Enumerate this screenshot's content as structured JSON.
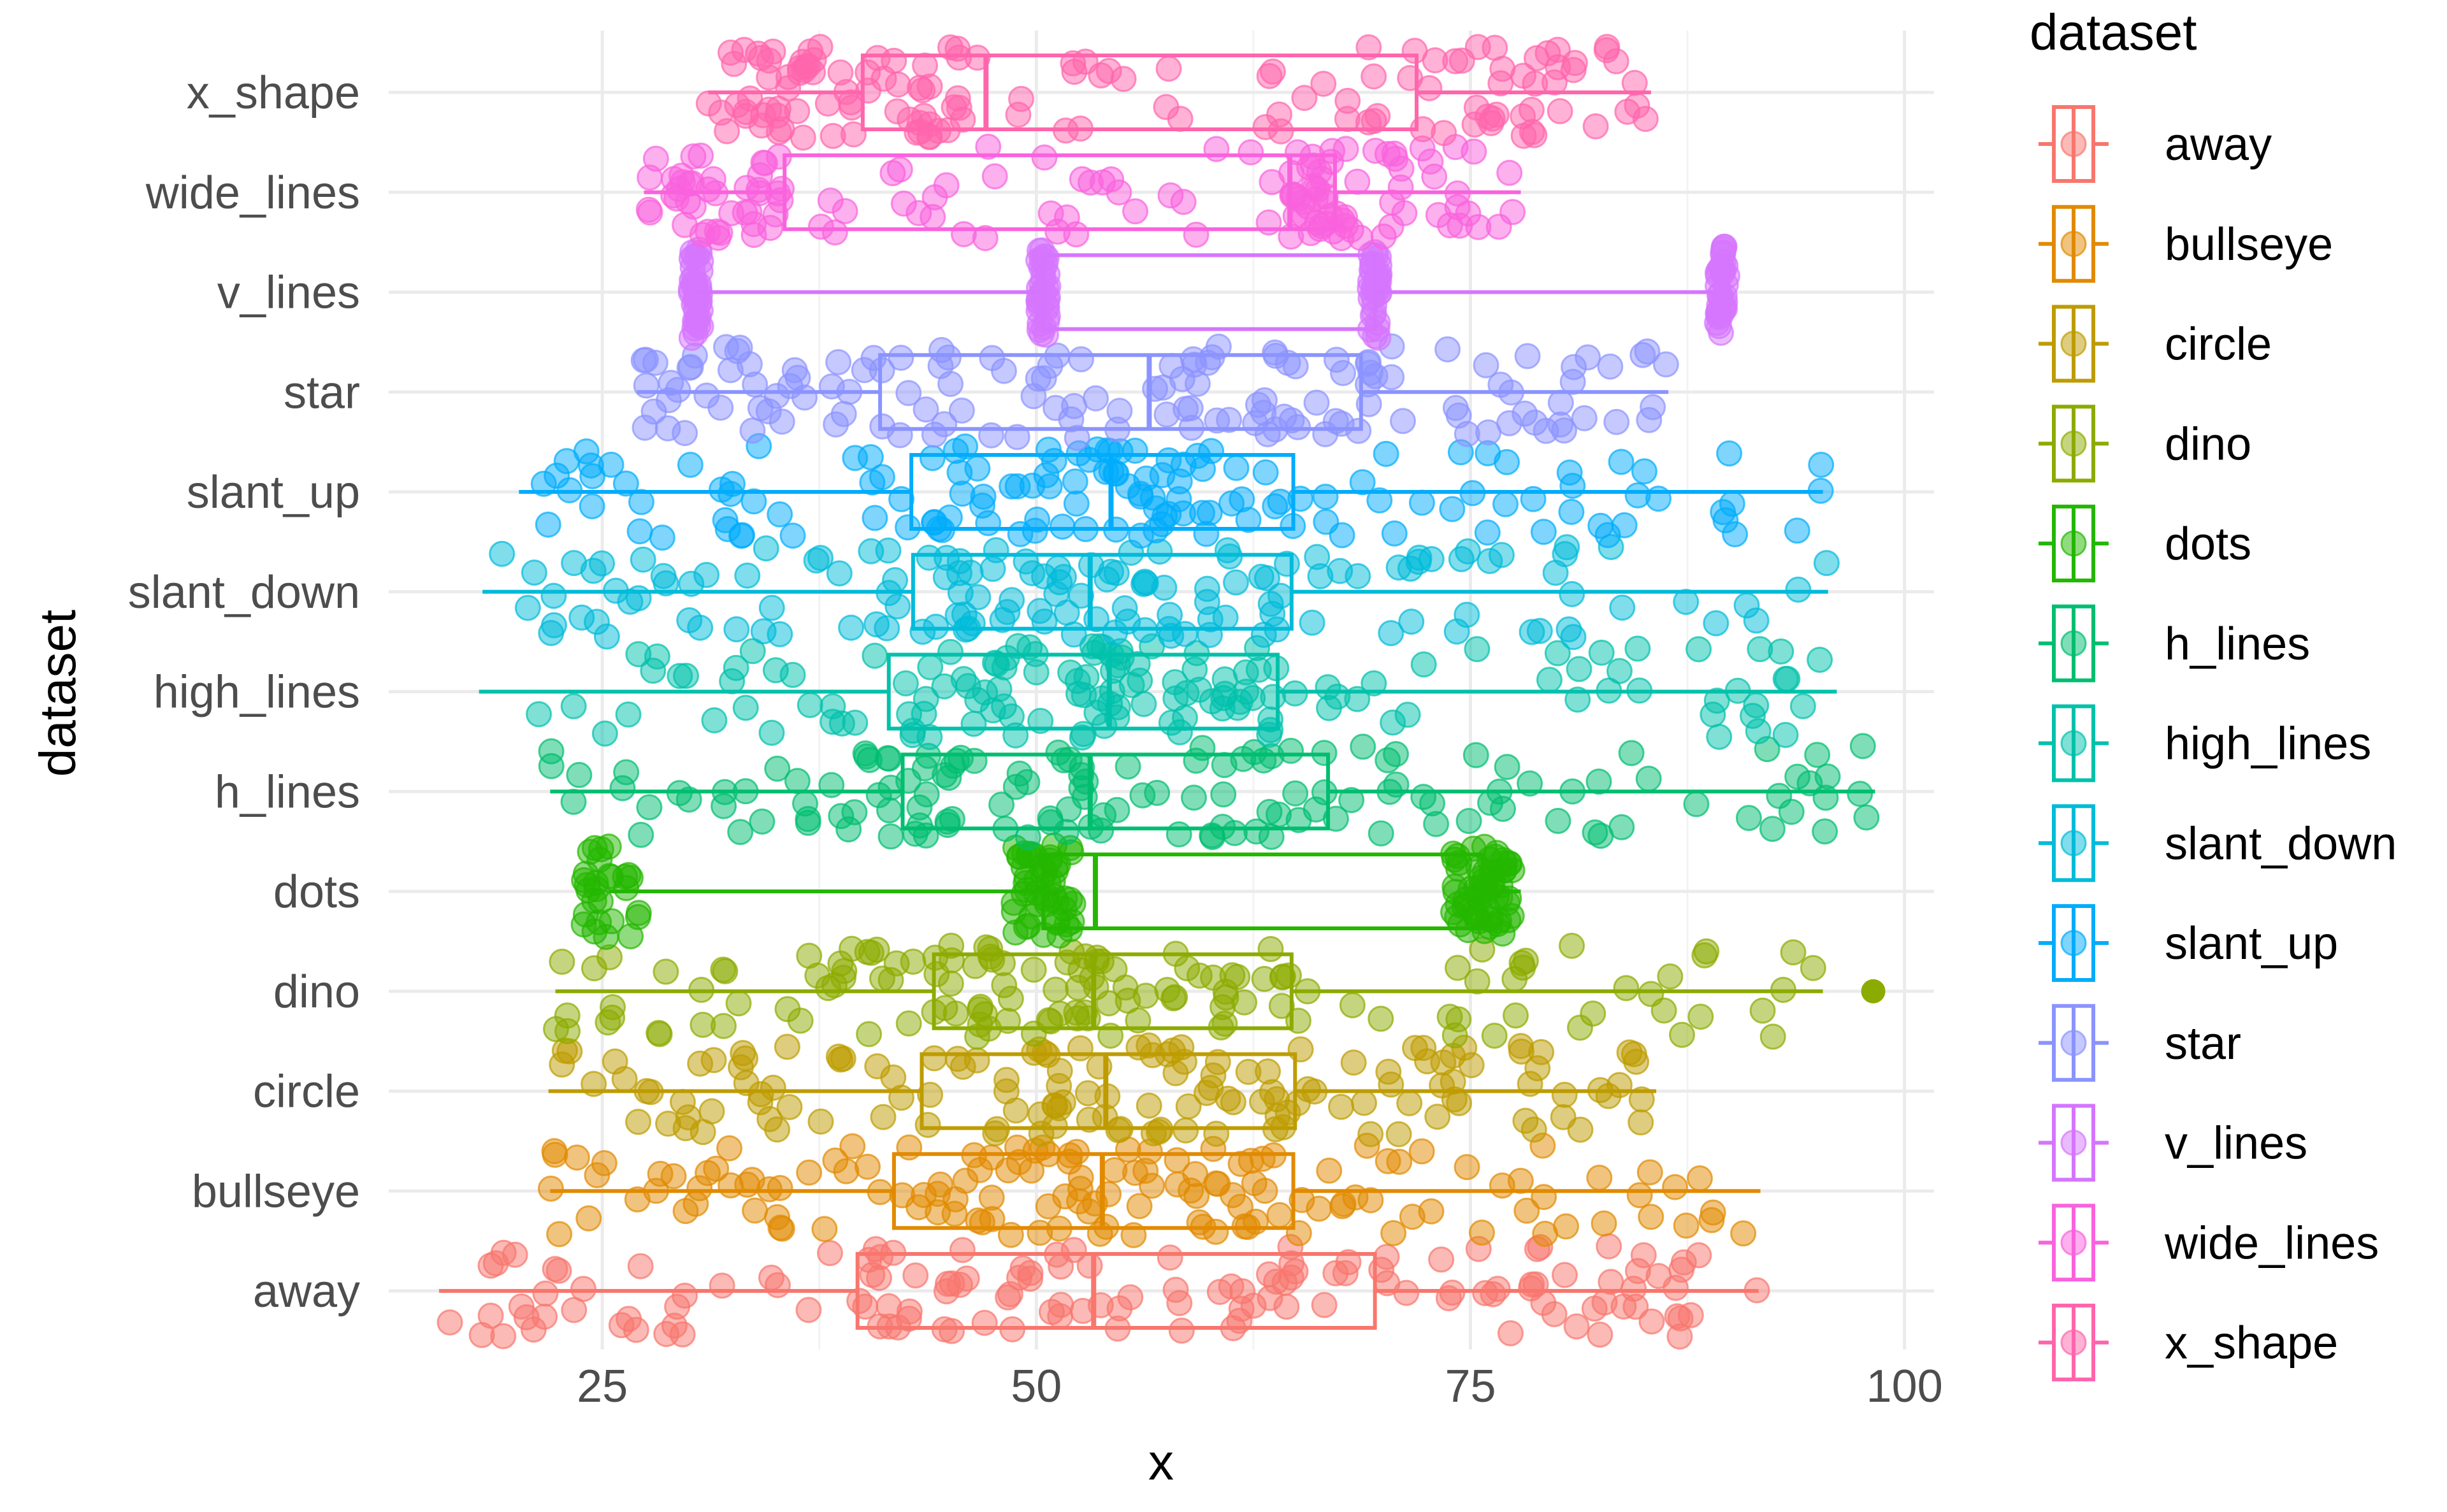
{
  "chart_data": {
    "type": "boxplot_jitter",
    "orientation": "horizontal",
    "xlabel": "x",
    "ylabel": "dataset",
    "xlim": [
      12.7,
      101.7
    ],
    "xticks": [
      25,
      50,
      75,
      100
    ],
    "grid": true,
    "legend": {
      "title": "dataset",
      "position": "right",
      "entries": [
        "away",
        "bullseye",
        "circle",
        "dino",
        "dots",
        "h_lines",
        "high_lines",
        "slant_down",
        "slant_up",
        "star",
        "v_lines",
        "wide_lines",
        "x_shape"
      ]
    },
    "categories": [
      "away",
      "bullseye",
      "circle",
      "dino",
      "dots",
      "h_lines",
      "high_lines",
      "slant_down",
      "slant_up",
      "star",
      "v_lines",
      "wide_lines",
      "x_shape"
    ],
    "colors": {
      "away": "#F8766D",
      "bullseye": "#E18A00",
      "circle": "#BE9C00",
      "dino": "#8CAB00",
      "dots": "#24B700",
      "h_lines": "#00BE70",
      "high_lines": "#00C1AB",
      "slant_down": "#00BBDA",
      "slant_up": "#00ACFC",
      "star": "#8B93FF",
      "v_lines": "#D575FE",
      "wide_lines": "#F962DD",
      "x_shape": "#FF65AC"
    },
    "series": [
      {
        "name": "away",
        "whisker_low": 15.6,
        "q1": 39.7,
        "median": 53.3,
        "q3": 69.5,
        "whisker_high": 91.6,
        "outliers": []
      },
      {
        "name": "bullseye",
        "whisker_low": 22.0,
        "q1": 41.8,
        "median": 53.8,
        "q3": 64.8,
        "whisker_high": 91.7,
        "outliers": []
      },
      {
        "name": "circle",
        "whisker_low": 21.9,
        "q1": 43.4,
        "median": 54.0,
        "q3": 64.9,
        "whisker_high": 85.7,
        "outliers": []
      },
      {
        "name": "dino",
        "whisker_low": 22.3,
        "q1": 44.1,
        "median": 53.3,
        "q3": 64.7,
        "whisker_high": 95.3,
        "outliers": [
          98.2
        ]
      },
      {
        "name": "dots",
        "whisker_low": 25.4,
        "q1": 50.4,
        "median": 53.4,
        "q3": 75.7,
        "whisker_high": 77.9,
        "outliers": []
      },
      {
        "name": "h_lines",
        "whisker_low": 22.0,
        "q1": 42.3,
        "median": 53.1,
        "q3": 66.8,
        "whisker_high": 98.3,
        "outliers": []
      },
      {
        "name": "high_lines",
        "whisker_low": 17.9,
        "q1": 41.5,
        "median": 54.2,
        "q3": 63.9,
        "whisker_high": 96.1,
        "outliers": []
      },
      {
        "name": "slant_down",
        "whisker_low": 18.1,
        "q1": 42.9,
        "median": 53.1,
        "q3": 64.7,
        "whisker_high": 95.6,
        "outliers": []
      },
      {
        "name": "slant_up",
        "whisker_low": 20.2,
        "q1": 42.8,
        "median": 54.3,
        "q3": 64.8,
        "whisker_high": 95.3,
        "outliers": []
      },
      {
        "name": "star",
        "whisker_low": 27.0,
        "q1": 41.0,
        "median": 56.5,
        "q3": 68.7,
        "whisker_high": 86.4,
        "outliers": []
      },
      {
        "name": "v_lines",
        "whisker_low": 30.4,
        "q1": 50.4,
        "median": 50.4,
        "q3": 69.5,
        "whisker_high": 89.5,
        "outliers": []
      },
      {
        "name": "wide_lines",
        "whisker_low": 27.4,
        "q1": 35.5,
        "median": 64.6,
        "q3": 67.2,
        "whisker_high": 77.9,
        "outliers": []
      },
      {
        "name": "x_shape",
        "whisker_low": 31.1,
        "q1": 40.0,
        "median": 47.1,
        "q3": 71.9,
        "whisker_high": 85.4,
        "outliers": []
      }
    ]
  }
}
